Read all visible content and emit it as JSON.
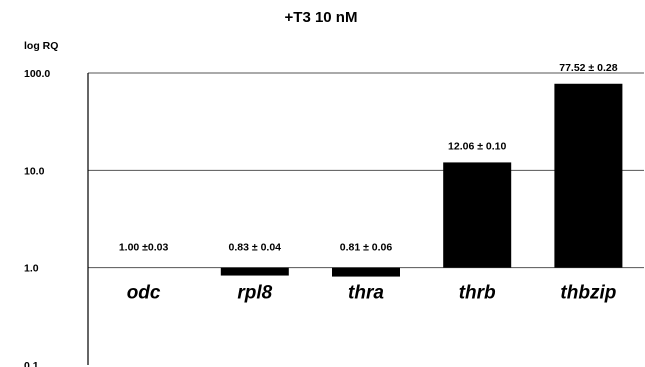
{
  "chart_data": {
    "type": "bar",
    "title": "+T3 10 nM",
    "ylabel": "log RQ",
    "xlabel": "",
    "yscale": "log",
    "ylim": [
      0.1,
      100
    ],
    "yticks": [
      0.1,
      1,
      10,
      100
    ],
    "ytick_labels": [
      "0.1",
      "1.0",
      "10.0",
      "100.0"
    ],
    "baseline": 1,
    "grid": true,
    "categories": [
      "odc",
      "rpl8",
      "thra",
      "thrb",
      "thbzip"
    ],
    "values": [
      1.0,
      0.83,
      0.81,
      12.06,
      77.52
    ],
    "data_labels": [
      "1.00 ±0.03",
      "0.83 ± 0.04",
      "0.81 ± 0.06",
      "12.06 ± 0.10",
      "77.52 ± 0.28"
    ],
    "bar_color": "#000000",
    "grid_color": "#555555"
  }
}
